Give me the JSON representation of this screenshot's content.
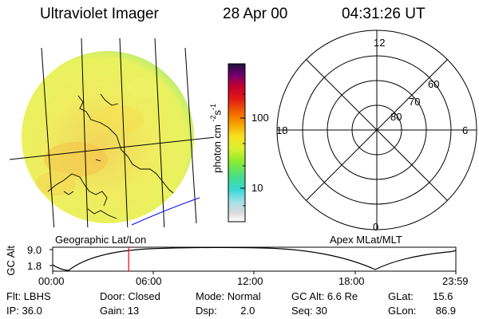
{
  "header": {
    "instrument": "Ultraviolet Imager",
    "date": "28 Apr 00",
    "time": "04:31:26 UT"
  },
  "map_label": "Geographic Lat/Lon",
  "polar_label": "Apex MLat/MLT",
  "colorbar": {
    "unit_text": "photon cm",
    "unit_exp1": "-2",
    "unit_mid": "s",
    "unit_exp2": "-1",
    "ticks": [
      "100",
      "10"
    ]
  },
  "polar": {
    "mlt_labels": {
      "top": "12",
      "left": "18",
      "right": "6",
      "bottom": "0"
    },
    "lat_labels": [
      "60",
      "70",
      "80"
    ]
  },
  "altitude_plot": {
    "ylabel": "GC Alt",
    "yticks": [
      "9.0",
      "1.8"
    ],
    "xticks": [
      "00:00",
      "06:00",
      "12:00",
      "18:00",
      "23:59"
    ],
    "marker_time_hours": 4.52
  },
  "info": {
    "row1": [
      {
        "label": "Flt:",
        "value": "LBHS"
      },
      {
        "label": "Door:",
        "value": "Closed"
      },
      {
        "label": "Mode:",
        "value": "Normal"
      },
      {
        "label": "GC Alt:",
        "value": "6.6 Re"
      },
      {
        "label": "GLat:",
        "value": "15.6"
      }
    ],
    "row2": [
      {
        "label": "IP:",
        "value": "36.0"
      },
      {
        "label": "Gain:",
        "value": "13"
      },
      {
        "label": "Dsp:",
        "value": "2.0"
      },
      {
        "label": "Seq:",
        "value": "30"
      },
      {
        "label": "GLon:",
        "value": "86.9"
      }
    ]
  },
  "colors": {
    "disk_fill": "#f0ee66",
    "disk_edge": "#6fd6b0",
    "marker": "#ff0000",
    "arc": "#0000ff"
  }
}
